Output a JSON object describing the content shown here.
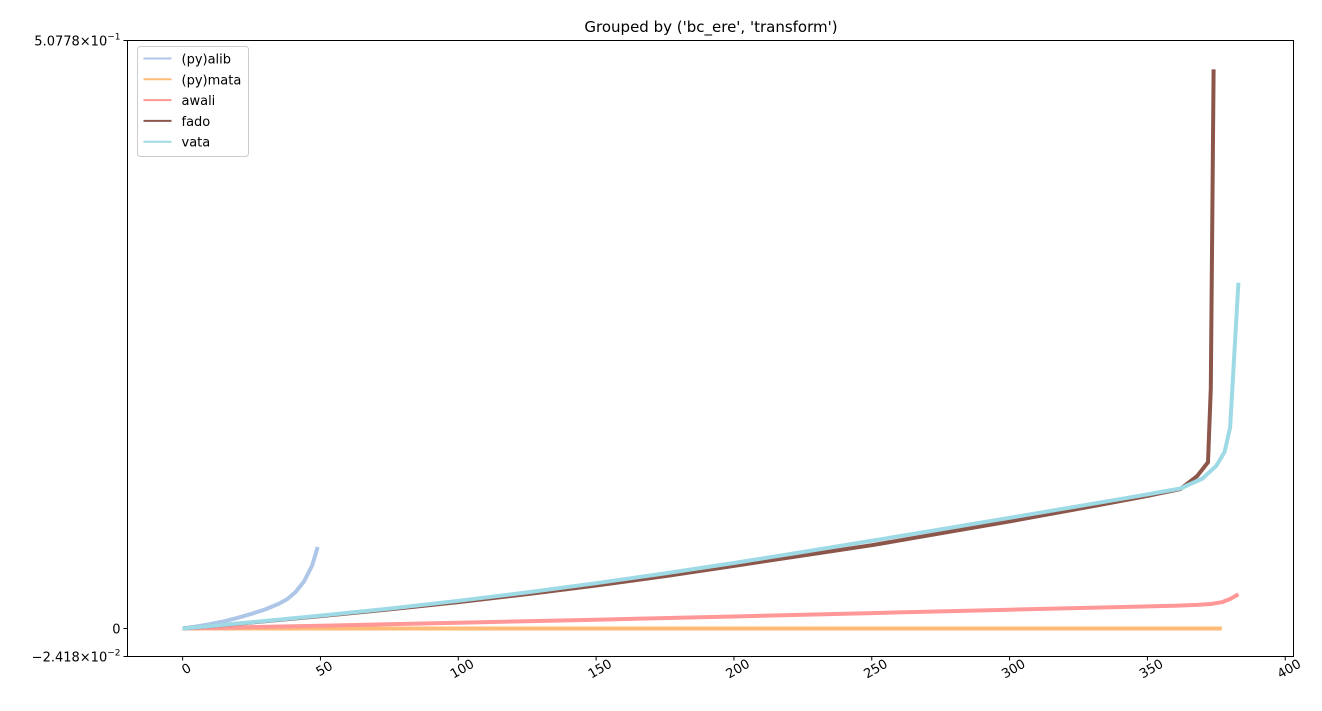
{
  "chart_data": {
    "type": "line",
    "title": "Grouped by ('bc_ere', 'transform')",
    "xlabel": "",
    "ylabel": "",
    "xlim": [
      -20,
      403
    ],
    "ylim": [
      -0.02418,
      0.50778
    ],
    "xticks": [
      0,
      50,
      100,
      150,
      200,
      250,
      300,
      350,
      400
    ],
    "yticks": [
      {
        "value": 0.50778,
        "mantissa": "5.0778",
        "exp": "−1"
      },
      {
        "value": 0,
        "plain": "0"
      },
      {
        "value": -0.02418,
        "mantissa": "−2.418",
        "exp": "−2"
      }
    ],
    "legend_position": "top-left",
    "grid": false,
    "series": [
      {
        "name": "(py)alib",
        "color": "#aec7e8",
        "x": [
          0,
          5,
          10,
          15,
          20,
          25,
          30,
          35,
          38,
          41,
          44,
          47,
          49
        ],
        "y": [
          0,
          0.0017,
          0.0038,
          0.0062,
          0.0092,
          0.0127,
          0.0165,
          0.0215,
          0.0255,
          0.0315,
          0.0405,
          0.0545,
          0.0705
        ]
      },
      {
        "name": "(py)mata",
        "color": "#ffbb78",
        "x": [
          0,
          100,
          200,
          300,
          377
        ],
        "y": [
          0,
          0,
          0,
          0,
          0
        ]
      },
      {
        "name": "awali",
        "color": "#ff9896",
        "x": [
          0,
          50,
          100,
          150,
          200,
          250,
          300,
          350,
          360,
          368,
          373,
          377,
          380,
          383
        ],
        "y": [
          0,
          0.0024,
          0.0049,
          0.0076,
          0.0104,
          0.0133,
          0.0162,
          0.0191,
          0.0197,
          0.0204,
          0.0212,
          0.0227,
          0.0255,
          0.0295
        ]
      },
      {
        "name": "fado",
        "color": "#8c564b",
        "x": [
          0,
          25,
          50,
          75,
          100,
          125,
          150,
          175,
          200,
          225,
          250,
          275,
          300,
          330,
          350,
          362,
          368,
          372,
          373,
          374
        ],
        "y": [
          0,
          0.0052,
          0.0107,
          0.0165,
          0.0228,
          0.0296,
          0.0371,
          0.0452,
          0.0541,
          0.063,
          0.0719,
          0.0822,
          0.0925,
          0.1055,
          0.1145,
          0.1205,
          0.1315,
          0.1435,
          0.2075,
          0.4828
        ]
      },
      {
        "name": "vata",
        "color": "#9edae5",
        "x": [
          0,
          25,
          50,
          75,
          100,
          125,
          150,
          175,
          200,
          225,
          250,
          275,
          300,
          325,
          350,
          362,
          370,
          375,
          378,
          380,
          383
        ],
        "y": [
          0,
          0.0054,
          0.0111,
          0.0172,
          0.0239,
          0.0312,
          0.0391,
          0.0476,
          0.0566,
          0.0661,
          0.0758,
          0.0856,
          0.0956,
          0.1056,
          0.1158,
          0.1209,
          0.1295,
          0.1405,
          0.1525,
          0.1735,
          0.2985
        ]
      }
    ]
  }
}
